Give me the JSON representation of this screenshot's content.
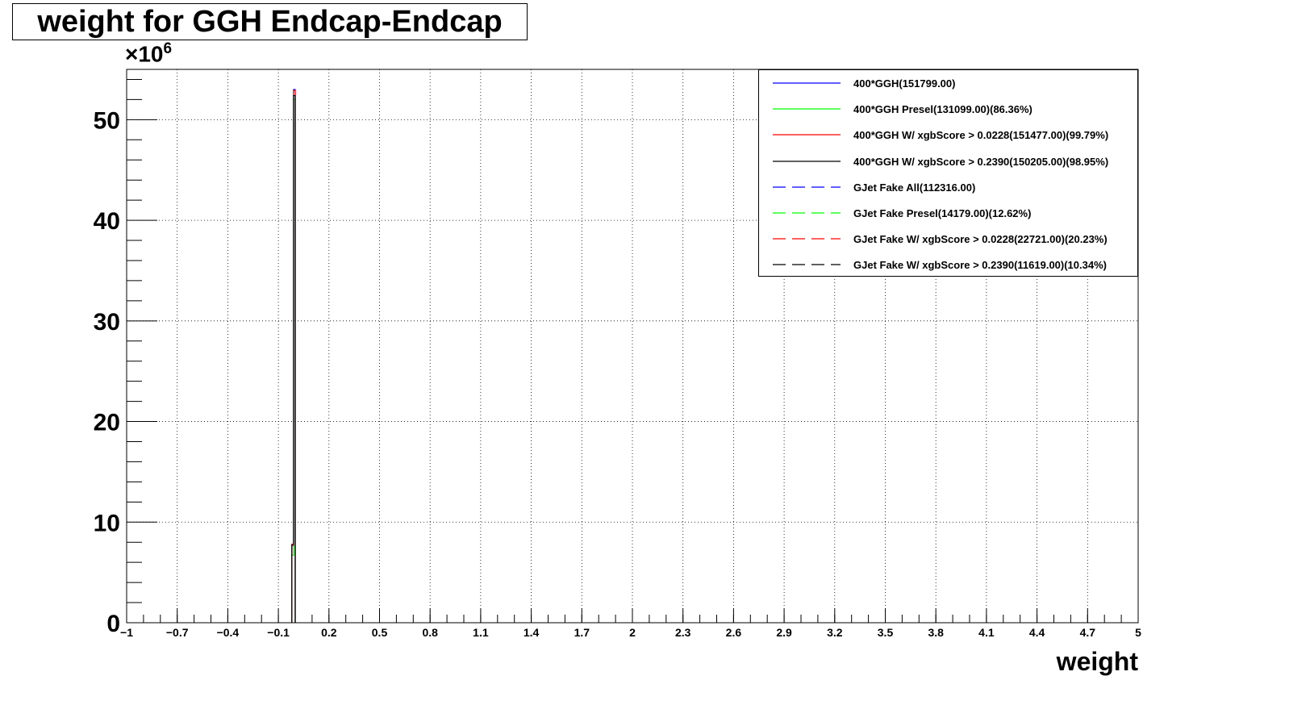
{
  "chart_data": {
    "type": "histogram",
    "title": "weight for GGH Endcap-Endcap",
    "xlabel": "weight",
    "ylabel": "",
    "y_multiplier_base": "×10",
    "y_multiplier_exp": "6",
    "xlim": [
      -1,
      5
    ],
    "ylim": [
      0,
      55
    ],
    "x_ticks": [
      "-1",
      "-0.7",
      "-0.4",
      "-0.1",
      "0.2",
      "0.5",
      "0.8",
      "1.1",
      "1.4",
      "1.7",
      "2",
      "2.3",
      "2.6",
      "2.9",
      "3.2",
      "3.5",
      "3.8",
      "4.1",
      "4.4",
      "4.7",
      "5"
    ],
    "y_ticks": [
      "0",
      "10",
      "20",
      "30",
      "40",
      "50"
    ],
    "grid": true,
    "legend_position": "top-right",
    "series": [
      {
        "name": "400*GGH(151799.00)",
        "color": "#0000ff",
        "dashed": false,
        "bins": [
          {
            "x0": -0.02,
            "x1": -0.01,
            "y": 7.8
          },
          {
            "x0": -0.01,
            "x1": 0.0,
            "y": 53.0
          }
        ]
      },
      {
        "name": "400*GGH Presel(131099.00)(86.36%)",
        "color": "#00ff00",
        "dashed": false,
        "bins": [
          {
            "x0": -0.02,
            "x1": -0.01,
            "y": 6.7
          },
          {
            "x0": -0.01,
            "x1": 0.0,
            "y": 52.0
          }
        ]
      },
      {
        "name": "400*GGH W/ xgbScore > 0.0228(151477.00)(99.79%)",
        "color": "#ff0000",
        "dashed": false,
        "bins": [
          {
            "x0": -0.02,
            "x1": -0.01,
            "y": 7.8
          },
          {
            "x0": -0.01,
            "x1": 0.0,
            "y": 52.9
          }
        ]
      },
      {
        "name": "400*GGH W/ xgbScore > 0.2390(150205.00)(98.95%)",
        "color": "#000000",
        "dashed": false,
        "bins": [
          {
            "x0": -0.02,
            "x1": -0.01,
            "y": 7.7
          },
          {
            "x0": -0.01,
            "x1": 0.0,
            "y": 52.4
          }
        ]
      },
      {
        "name": "GJet Fake All(112316.00)",
        "color": "#0000ff",
        "dashed": true,
        "bins": []
      },
      {
        "name": "GJet Fake Presel(14179.00)(12.62%)",
        "color": "#00ff00",
        "dashed": true,
        "bins": []
      },
      {
        "name": "GJet Fake W/ xgbScore > 0.0228(22721.00)(20.23%)",
        "color": "#ff0000",
        "dashed": true,
        "bins": []
      },
      {
        "name": "GJet Fake W/ xgbScore > 0.2390(11619.00)(10.34%)",
        "color": "#000000",
        "dashed": true,
        "bins": []
      }
    ]
  }
}
